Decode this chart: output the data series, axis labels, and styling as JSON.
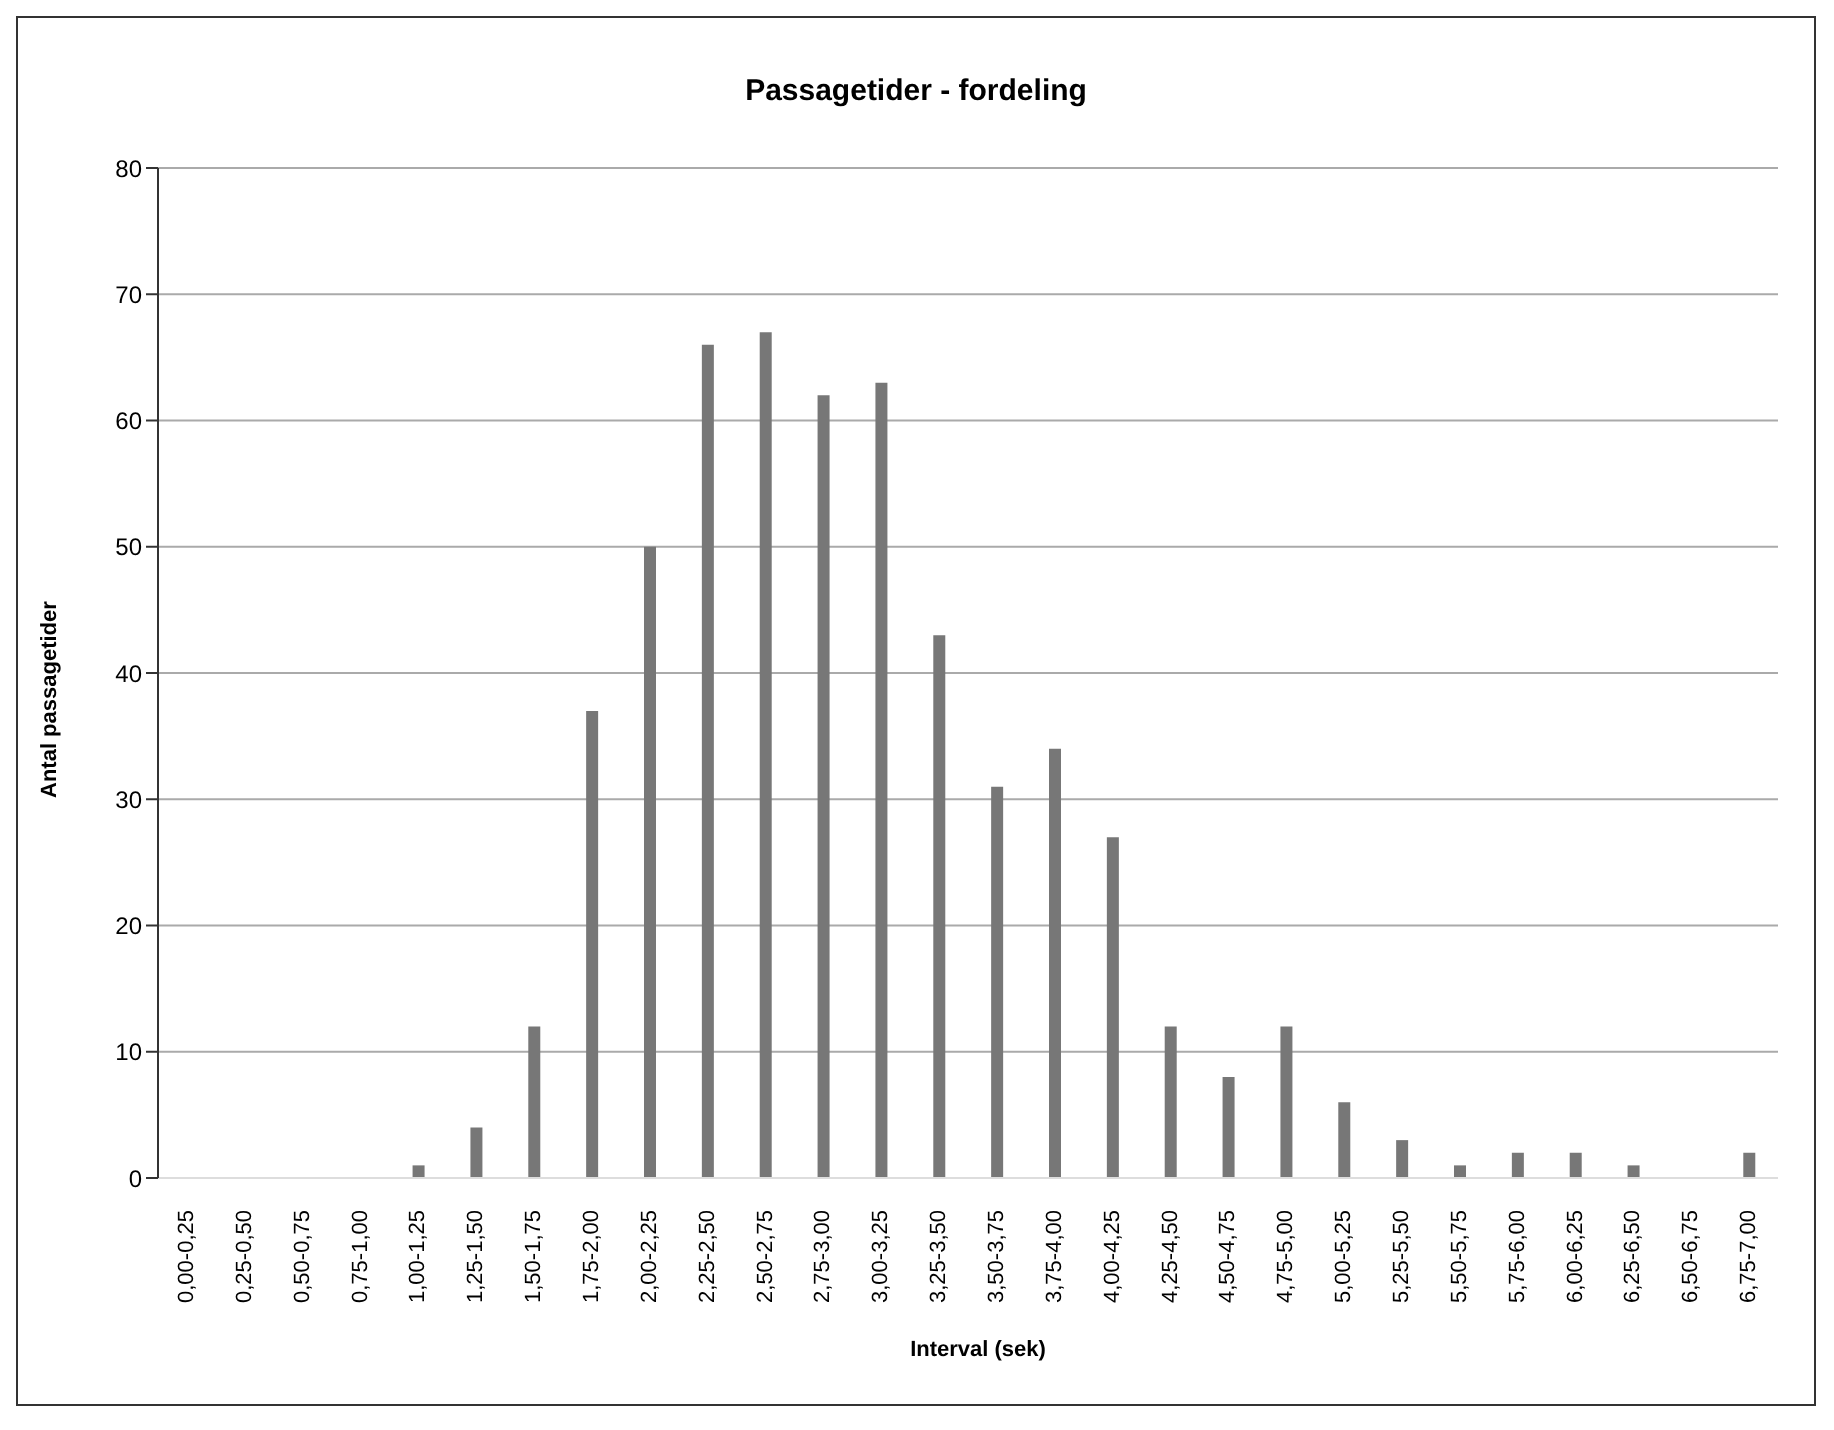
{
  "chart_data": {
    "type": "bar",
    "title": "Passagetider - fordeling",
    "xlabel": "Interval (sek)",
    "ylabel": "Antal passagetider",
    "categories": [
      "0,00-0,25",
      "0,25-0,50",
      "0,50-0,75",
      "0,75-1,00",
      "1,00-1,25",
      "1,25-1,50",
      "1,50-1,75",
      "1,75-2,00",
      "2,00-2,25",
      "2,25-2,50",
      "2,50-2,75",
      "2,75-3,00",
      "3,00-3,25",
      "3,25-3,50",
      "3,50-3,75",
      "3,75-4,00",
      "4,00-4,25",
      "4,25-4,50",
      "4,50-4,75",
      "4,75-5,00",
      "5,00-5,25",
      "5,25-5,50",
      "5,50-5,75",
      "5,75-6,00",
      "6,00-6,25",
      "6,25-6,50",
      "6,50-6,75",
      "6,75-7,00"
    ],
    "values": [
      0,
      0,
      0,
      0,
      1,
      4,
      12,
      37,
      50,
      66,
      67,
      62,
      63,
      43,
      31,
      34,
      27,
      12,
      8,
      12,
      6,
      3,
      1,
      2,
      2,
      1,
      0,
      2
    ],
    "color": "#777777",
    "ylim": [
      0,
      80
    ],
    "yticks": [
      0,
      10,
      20,
      30,
      40,
      50,
      60,
      70,
      80
    ],
    "grid": "y"
  }
}
